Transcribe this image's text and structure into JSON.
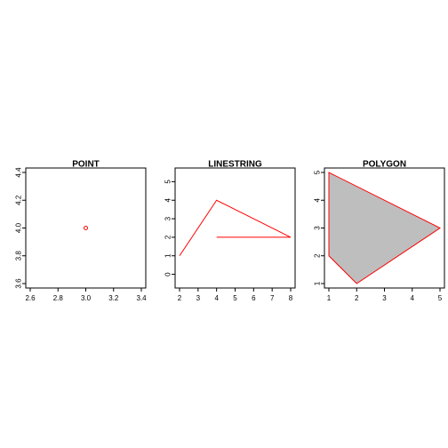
{
  "chart_data": [
    {
      "type": "scatter",
      "title": "POINT",
      "xlabel": "",
      "ylabel": "",
      "xlim": [
        2.6,
        3.4
      ],
      "ylim": [
        3.6,
        4.4
      ],
      "xticks": [
        "2.6",
        "2.8",
        "3.0",
        "3.2",
        "3.4"
      ],
      "yticks": [
        "3.6",
        "3.8",
        "4.0",
        "4.2",
        "4.4"
      ],
      "series": [
        {
          "x": [
            3.0
          ],
          "y": [
            4.0
          ],
          "color": "#ff0000",
          "marker": "open-circle"
        }
      ]
    },
    {
      "type": "line",
      "title": "LINESTRING",
      "xlabel": "",
      "ylabel": "",
      "xlim": [
        2,
        8
      ],
      "ylim": [
        -0.5,
        5.5
      ],
      "xticks": [
        "2",
        "3",
        "4",
        "5",
        "6",
        "7",
        "8"
      ],
      "yticks": [
        "0",
        "1",
        "2",
        "3",
        "4",
        "5"
      ],
      "series": [
        {
          "x": [
            2,
            4,
            8,
            4
          ],
          "y": [
            1,
            4,
            2,
            2
          ],
          "color": "#ff0000"
        }
      ]
    },
    {
      "type": "area",
      "title": "POLYGON",
      "xlabel": "",
      "ylabel": "",
      "xlim": [
        1,
        5
      ],
      "ylim": [
        1,
        5
      ],
      "xticks": [
        "1",
        "2",
        "3",
        "4",
        "5"
      ],
      "yticks": [
        "1",
        "2",
        "3",
        "4",
        "5"
      ],
      "series": [
        {
          "x": [
            1,
            1,
            2,
            5,
            1
          ],
          "y": [
            5,
            2,
            1,
            3,
            5
          ],
          "color": "#ff0000",
          "fill": "#bebebe"
        }
      ]
    }
  ]
}
